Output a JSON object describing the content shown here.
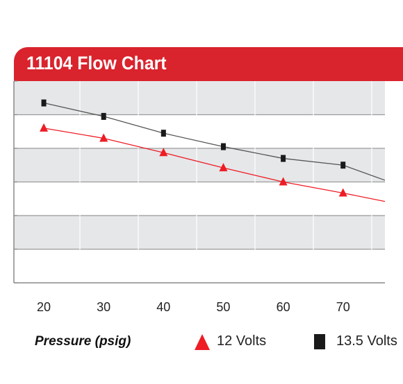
{
  "colors": {
    "title_bar": "#d9232d",
    "band_gray": "#e6e7e9",
    "series_12v": "#ee1c25",
    "series_13_5v": "#1a1a1a",
    "line_13_5v": "#555555"
  },
  "chart_data": {
    "type": "line",
    "title": "11104 Flow Chart",
    "xlabel": "Pressure (psig)",
    "ylabel": "",
    "x_ticks": [
      "20",
      "30",
      "40",
      "50",
      "60",
      "70"
    ],
    "xlim": [
      15,
      77
    ],
    "ylim": [
      0,
      6
    ],
    "grid": true,
    "legend_position": "bottom",
    "series": [
      {
        "name": "12 Volts",
        "marker": "triangle",
        "color": "#ee1c25",
        "x": [
          20,
          30,
          40,
          50,
          60,
          70,
          77
        ],
        "y": [
          4.6,
          4.3,
          3.87,
          3.42,
          3.0,
          2.67,
          2.42
        ]
      },
      {
        "name": "13.5 Volts",
        "marker": "square",
        "color": "#1a1a1a",
        "x": [
          20,
          30,
          40,
          50,
          60,
          70,
          77
        ],
        "y": [
          5.35,
          4.95,
          4.45,
          4.05,
          3.7,
          3.5,
          3.05
        ]
      }
    ]
  }
}
